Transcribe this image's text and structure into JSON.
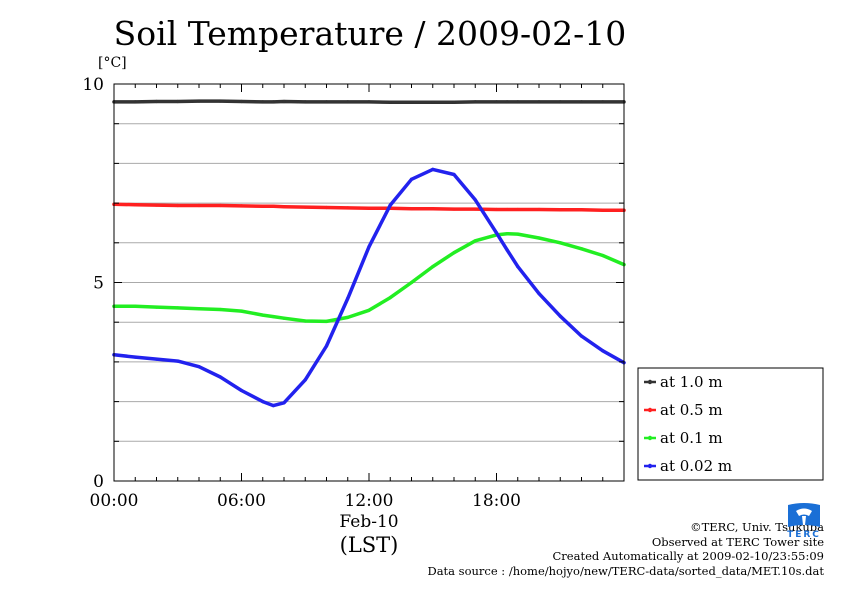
{
  "title": "Soil Temperature / 2009-02-10",
  "unit_label": "[°C]",
  "date_label": "Feb-10",
  "timezone_label": "(LST)",
  "credits": {
    "copyright": "©TERC, Univ. Tsukuba",
    "observed": "Observed at TERC Tower site",
    "created": "Created Automatically at 2009-02-10/23:55:09",
    "source": "Data source : /home/hojyo/new/TERC-data/sorted_data/MET.10s.dat"
  },
  "logo_text": "TERC",
  "colors": {
    "depth_1_0": "#333333",
    "depth_0_5": "#ff2020",
    "depth_0_1": "#22ee22",
    "depth_0_02": "#2222ee"
  },
  "chart_data": {
    "type": "line",
    "title": "Soil Temperature / 2009-02-10",
    "ylabel": "[°C]",
    "xlabel": "Feb-10 (LST)",
    "xlim": [
      0,
      24
    ],
    "ylim": [
      0,
      10
    ],
    "x_ticks": [
      "00:00",
      "06:00",
      "12:00",
      "18:00"
    ],
    "y_ticks": [
      "0",
      "5",
      "10"
    ],
    "grid": true,
    "legend_position": "right",
    "x": [
      0,
      1,
      2,
      3,
      4,
      5,
      6,
      7,
      7.5,
      8,
      9,
      10,
      11,
      12,
      13,
      14,
      15,
      16,
      17,
      18,
      18.5,
      19,
      20,
      21,
      22,
      23,
      24
    ],
    "series": [
      {
        "name": "at 1.0 m",
        "color": "#333333",
        "values": [
          9.55,
          9.55,
          9.56,
          9.56,
          9.57,
          9.57,
          9.56,
          9.55,
          9.55,
          9.56,
          9.55,
          9.55,
          9.55,
          9.55,
          9.54,
          9.54,
          9.54,
          9.54,
          9.55,
          9.55,
          9.55,
          9.55,
          9.55,
          9.55,
          9.55,
          9.55,
          9.55
        ]
      },
      {
        "name": "at 0.5 m",
        "color": "#ff2020",
        "values": [
          6.97,
          6.96,
          6.95,
          6.94,
          6.94,
          6.94,
          6.93,
          6.92,
          6.92,
          6.91,
          6.9,
          6.89,
          6.88,
          6.87,
          6.87,
          6.86,
          6.86,
          6.85,
          6.85,
          6.84,
          6.84,
          6.84,
          6.84,
          6.83,
          6.83,
          6.82,
          6.82
        ]
      },
      {
        "name": "at 0.1 m",
        "color": "#22ee22",
        "values": [
          4.4,
          4.4,
          4.38,
          4.36,
          4.34,
          4.32,
          4.28,
          4.18,
          4.14,
          4.1,
          4.03,
          4.02,
          4.12,
          4.3,
          4.62,
          5.0,
          5.4,
          5.75,
          6.05,
          6.2,
          6.23,
          6.22,
          6.12,
          6.0,
          5.85,
          5.68,
          5.45
        ]
      },
      {
        "name": "at 0.02 m",
        "color": "#2222ee",
        "values": [
          3.18,
          3.12,
          3.07,
          3.02,
          2.88,
          2.62,
          2.28,
          2.0,
          1.9,
          1.97,
          2.55,
          3.4,
          4.6,
          5.9,
          6.95,
          7.6,
          7.85,
          7.72,
          7.08,
          6.25,
          5.82,
          5.4,
          4.72,
          4.15,
          3.65,
          3.28,
          2.98
        ]
      }
    ]
  }
}
